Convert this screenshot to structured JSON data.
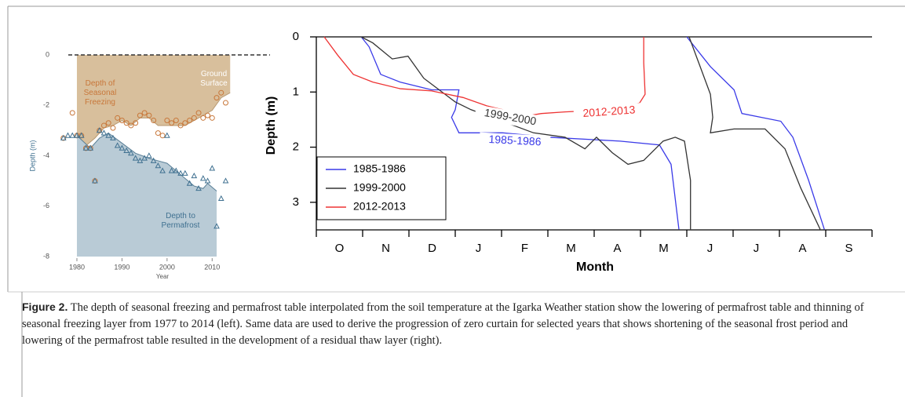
{
  "chart_data": [
    {
      "type": "scatter",
      "xlabel": "Year",
      "ylabel": "Depth (m)",
      "xlim": [
        1976,
        2015
      ],
      "xticks": [
        1980,
        1990,
        2000,
        2010
      ],
      "ylim": [
        -8,
        0
      ],
      "yticks": [
        0,
        -2,
        -4,
        -6,
        -8
      ],
      "annotations": [
        "Depth of Seasonal Freezing",
        "Ground Surface",
        "Depth to Permafrost"
      ],
      "areas": [
        {
          "color": "#d8bf9c",
          "fill_to": "top",
          "x": [
            1980,
            1982,
            1984,
            1986,
            1988,
            1990,
            1992,
            1994,
            1996,
            1998,
            2000,
            2002,
            2004,
            2006,
            2008,
            2010,
            2012,
            2014
          ],
          "values": [
            -3.2,
            -3.6,
            -3.3,
            -2.9,
            -2.8,
            -2.6,
            -2.8,
            -2.5,
            -2.5,
            -2.8,
            -2.8,
            -2.8,
            -2.8,
            -2.6,
            -2.4,
            -2.2,
            -1.7,
            -1.5
          ]
        },
        {
          "color": "#b9cbd6",
          "fill_to": "bottom",
          "x": [
            1980,
            1983,
            1985,
            1987,
            1990,
            1993,
            1996,
            1998,
            2000,
            2002,
            2004,
            2006,
            2008,
            2009,
            2011
          ],
          "values": [
            -3.2,
            -3.7,
            -3.3,
            -3.1,
            -3.5,
            -3.9,
            -4.1,
            -4.2,
            -4.3,
            -4.6,
            -4.9,
            -5.2,
            -5.3,
            -5.1,
            -5.4
          ]
        }
      ],
      "x": [
        1977,
        1978,
        1979,
        1980,
        1981,
        1982,
        1983,
        1984,
        1985,
        1986,
        1987,
        1988,
        1989,
        1990,
        1991,
        1992,
        1993,
        1994,
        1995,
        1996,
        1997,
        1998,
        1999,
        2000,
        2001,
        2002,
        2003,
        2004,
        2005,
        2006,
        2007,
        2008,
        2009,
        2010,
        2011,
        2012,
        2013
      ],
      "series": [
        {
          "marker": "circle",
          "color": "#c8773a",
          "values": [
            -3.3,
            null,
            -2.3,
            -3.2,
            -3.2,
            -3.7,
            -3.7,
            -5.0,
            -3.0,
            -2.8,
            -2.7,
            -2.9,
            -2.5,
            -2.6,
            -2.7,
            -2.8,
            -2.7,
            -2.4,
            -2.3,
            -2.4,
            -2.6,
            -3.1,
            -3.2,
            -2.6,
            -2.7,
            -2.6,
            -2.8,
            -2.7,
            -2.6,
            -2.5,
            -2.3,
            -2.5,
            -2.4,
            -2.5,
            -1.7,
            -1.5,
            -1.9
          ]
        },
        {
          "marker": "triangle",
          "color": "#3f7090",
          "values": [
            -3.3,
            -3.2,
            -3.2,
            -3.2,
            -3.2,
            -3.7,
            -3.7,
            -5.0,
            -3.0,
            -3.1,
            -3.2,
            -3.3,
            -3.6,
            -3.7,
            -3.8,
            -3.9,
            -4.1,
            -4.2,
            -4.1,
            -4.0,
            -4.2,
            -4.4,
            -4.6,
            -3.2,
            -4.6,
            -4.6,
            -4.7,
            -4.7,
            -5.1,
            -4.8,
            -5.3,
            -4.9,
            -5.0,
            -4.5,
            -6.8,
            -5.7,
            -5.0
          ]
        }
      ]
    },
    {
      "type": "line",
      "xlabel": "Month",
      "ylabel": "Depth (m)",
      "xlim": [
        0,
        12
      ],
      "xticks": [
        0,
        1,
        2,
        3,
        4,
        5,
        6,
        7,
        8,
        9,
        10,
        11,
        12
      ],
      "categories": [
        "O",
        "N",
        "D",
        "J",
        "F",
        "M",
        "A",
        "M",
        "J",
        "J",
        "A",
        "S"
      ],
      "ylim": [
        0,
        3.5
      ],
      "y_inverted": true,
      "yticks": [
        0,
        1,
        2,
        3
      ],
      "legend": "lower-left",
      "series": [
        {
          "name": "1985-1986",
          "color": "#3a3ae8",
          "x": [
            0.97,
            1.14,
            1.39,
            1.81,
            2.49,
            3.08,
            3.0,
            2.92,
            3.08,
            4.02,
            5.03,
            6.56,
            7.41,
            7.66,
            7.83,
            null,
            8.0,
            8.51,
            9.02,
            9.19,
            10.03,
            10.29,
            10.63,
            10.97
          ],
          "values": [
            0,
            0.18,
            0.68,
            0.82,
            0.96,
            0.96,
            1.32,
            1.46,
            1.74,
            1.74,
            1.82,
            1.89,
            1.96,
            2.31,
            3.49,
            null,
            0,
            0.54,
            0.96,
            1.39,
            1.53,
            1.82,
            2.6,
            3.49
          ]
        },
        {
          "name": "1999-2000",
          "color": "#333333",
          "x": [
            0.97,
            1.22,
            1.64,
            1.98,
            2.32,
            3.0,
            3.34,
            4.69,
            5.37,
            5.8,
            6.05,
            6.39,
            6.73,
            7.07,
            7.49,
            7.75,
            7.95,
            8.08,
            8.08,
            null,
            8.05,
            8.51,
            8.56,
            8.51,
            9.02,
            9.69,
            10.12,
            10.46,
            10.88
          ],
          "values": [
            0,
            0.11,
            0.4,
            0.35,
            0.75,
            1.18,
            1.32,
            1.74,
            1.82,
            2.03,
            1.82,
            2.1,
            2.31,
            2.24,
            1.89,
            1.82,
            1.89,
            2.6,
            3.49,
            null,
            0,
            1.04,
            1.46,
            1.74,
            1.67,
            1.67,
            2.03,
            2.74,
            3.49
          ]
        },
        {
          "name": "2012-2013",
          "color": "#ee3333",
          "x": [
            0.17,
            0.46,
            0.8,
            1.22,
            1.81,
            2.49,
            3.17,
            3.68,
            4.02,
            4.36,
            4.86,
            5.37,
            6.39,
            6.98,
            7.1,
            7.07,
            7.07
          ],
          "values": [
            0,
            0.33,
            0.68,
            0.82,
            0.94,
            0.98,
            1.1,
            1.25,
            1.32,
            1.46,
            1.39,
            1.36,
            1.32,
            1.2,
            1.04,
            0.47,
            0
          ]
        }
      ]
    }
  ],
  "caption": {
    "label": "Figure 2.",
    "text": "The depth of seasonal freezing and permafrost table interpolated from the soil temperature at the Igarka Weather station show the lowering of permafrost table and thinning of seasonal freezing layer from 1977 to 2014 (left). Same data are used to derive the progression of zero curtain for selected years that shows shortening of the seasonal frost period and lowering of the permafrost table resulted in the development of a residual thaw layer (right)."
  }
}
